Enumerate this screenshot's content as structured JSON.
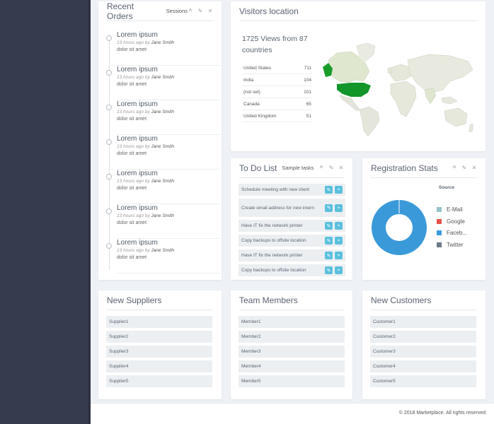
{
  "recent_orders": {
    "title": "Recent Orders",
    "subtitle": "Sessions",
    "items": [
      {
        "title": "Lorem ipsum",
        "time": "13 hours ago by",
        "author": "Jane Smith",
        "desc": "dolor sit amet"
      },
      {
        "title": "Lorem ipsum",
        "time": "13 hours ago by",
        "author": "Jane Smith",
        "desc": "dolor sit amet"
      },
      {
        "title": "Lorem ipsum",
        "time": "13 hours ago by",
        "author": "Jane Smith",
        "desc": "dolor sit amet"
      },
      {
        "title": "Lorem ipsum",
        "time": "13 hours ago by",
        "author": "Jane Smith",
        "desc": "dolor sit amet"
      },
      {
        "title": "Lorem ipsum",
        "time": "13 hours ago by",
        "author": "Jane Smith",
        "desc": "dolor sit amet"
      },
      {
        "title": "Lorem ipsum",
        "time": "13 hours ago by",
        "author": "Jane Smith",
        "desc": "dolor sit amet"
      },
      {
        "title": "Lorem ipsum",
        "time": "13 hours ago by",
        "author": "Jane Smith",
        "desc": "dolor sit amet"
      }
    ]
  },
  "visitors": {
    "title": "Visitors location",
    "summary": "1725 Views from 87 countries",
    "rows": [
      {
        "country": "United States",
        "views": "711"
      },
      {
        "country": "India",
        "views": "104"
      },
      {
        "country": "(not set)",
        "views": "101"
      },
      {
        "country": "Canada",
        "views": "65"
      },
      {
        "country": "United Kingdom",
        "views": "51"
      }
    ]
  },
  "todo": {
    "title": "To Do List",
    "subtitle": "Sample tasks",
    "items": [
      "Schedule meeting with new client",
      "Create email address for new intern",
      "Have IT fix the network printer",
      "Copy backups to offsite location",
      "Have IT fix the network printer",
      "Copy backups to offsite location"
    ]
  },
  "registration": {
    "title": "Registration Stats",
    "source_label": "Source",
    "legend": [
      {
        "label": "E-Mail",
        "color": "#95c3c9"
      },
      {
        "label": "Google",
        "color": "#e8534a"
      },
      {
        "label": "Faceb...",
        "color": "#3a9ad9"
      },
      {
        "label": "Twitter",
        "color": "#6c7a89"
      }
    ],
    "shares": [
      0.0,
      0.0,
      1.0,
      0.0
    ]
  },
  "suppliers": {
    "title": "New Suppliers",
    "items": [
      "Supplier1",
      "Supplier2",
      "Supplier3",
      "Supplier4",
      "Supplier5"
    ]
  },
  "members": {
    "title": "Team Members",
    "items": [
      "Member1",
      "Member2",
      "Member3",
      "Member4",
      "Member5"
    ]
  },
  "customers": {
    "title": "New Customers",
    "items": [
      "Customer1",
      "Customer2",
      "Customer3",
      "Customer4",
      "Customer5"
    ]
  },
  "footer": {
    "text": "© 2018 Marketplace. All rights reserved"
  },
  "icons": {
    "collapse": "chevron-up-icon",
    "settings": "wrench-icon",
    "close": "close-icon",
    "edit": "pencil-icon",
    "delete": "trash-icon"
  }
}
